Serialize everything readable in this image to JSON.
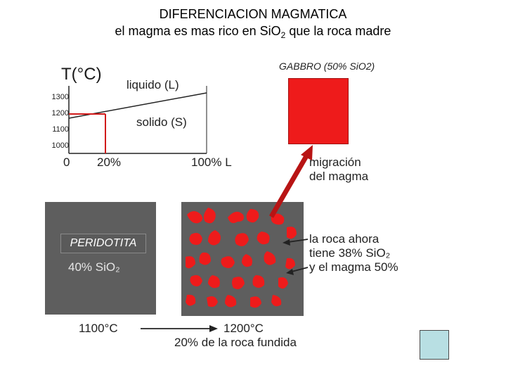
{
  "title": {
    "line1": "DIFERENCIACION MAGMATICA",
    "line2_prefix": "el magma es mas rico en Si",
    "line2_o": "O",
    "line2_sub": "2",
    "line2_suffix": " que la roca madre"
  },
  "gabbro": {
    "label": "GABBRO (50% SiO2)",
    "color": "#ee1b1b"
  },
  "graph": {
    "y_axis_label": "T(°C)",
    "y_ticks": [
      "1300",
      "1200",
      "1100",
      "1000"
    ],
    "x_ticks": [
      "0",
      "20%",
      "100% L"
    ],
    "liquidus_label": "liquido (L)",
    "solidus_label": "solido (S)",
    "highlight_color": "#d11a1a"
  },
  "peridotite": {
    "label": "PERIDOTITA",
    "sio2": "40% SiO₂"
  },
  "migration": {
    "line1": "migración",
    "line2": "del magma"
  },
  "rock_text": {
    "line1": "la roca ahora",
    "line2": "tiene 38% SiO₂",
    "line3": "y el magma 50%"
  },
  "bottom": {
    "temp_left": "1100°C",
    "temp_right": "1200°C",
    "caption": "20% de la roca fundida"
  },
  "colors": {
    "rock_gray": "#5e5e5e",
    "melt_red": "#ee1b1b",
    "icon_square": "#b8dfe3"
  }
}
